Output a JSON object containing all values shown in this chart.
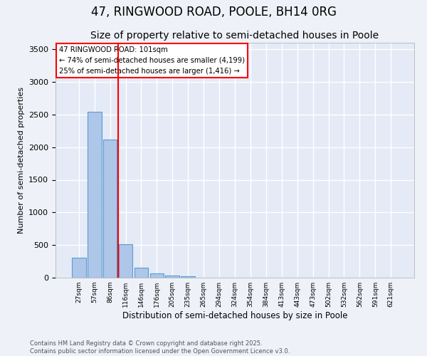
{
  "title": "47, RINGWOOD ROAD, POOLE, BH14 0RG",
  "subtitle": "Size of property relative to semi-detached houses in Poole",
  "xlabel": "Distribution of semi-detached houses by size in Poole",
  "ylabel": "Number of semi-detached properties",
  "categories": [
    "27sqm",
    "57sqm",
    "86sqm",
    "116sqm",
    "146sqm",
    "176sqm",
    "205sqm",
    "235sqm",
    "265sqm",
    "294sqm",
    "324sqm",
    "354sqm",
    "384sqm",
    "413sqm",
    "443sqm",
    "473sqm",
    "502sqm",
    "532sqm",
    "562sqm",
    "591sqm",
    "621sqm"
  ],
  "values": [
    310,
    2540,
    2120,
    515,
    150,
    65,
    35,
    20,
    5,
    0,
    0,
    0,
    0,
    0,
    0,
    0,
    0,
    0,
    0,
    0,
    0
  ],
  "bar_color": "#aec6e8",
  "bar_edge_color": "#5b9bd5",
  "red_line_x": 2.5,
  "annotation_text": "47 RINGWOOD ROAD: 101sqm\n← 74% of semi-detached houses are smaller (4,199)\n25% of semi-detached houses are larger (1,416) →",
  "footer_line1": "Contains HM Land Registry data © Crown copyright and database right 2025.",
  "footer_line2": "Contains public sector information licensed under the Open Government Licence v3.0.",
  "ylim": [
    0,
    3600
  ],
  "background_color": "#eef2f8",
  "plot_bg_color": "#e4eaf6",
  "grid_color": "#ffffff",
  "title_fontsize": 12,
  "subtitle_fontsize": 10
}
